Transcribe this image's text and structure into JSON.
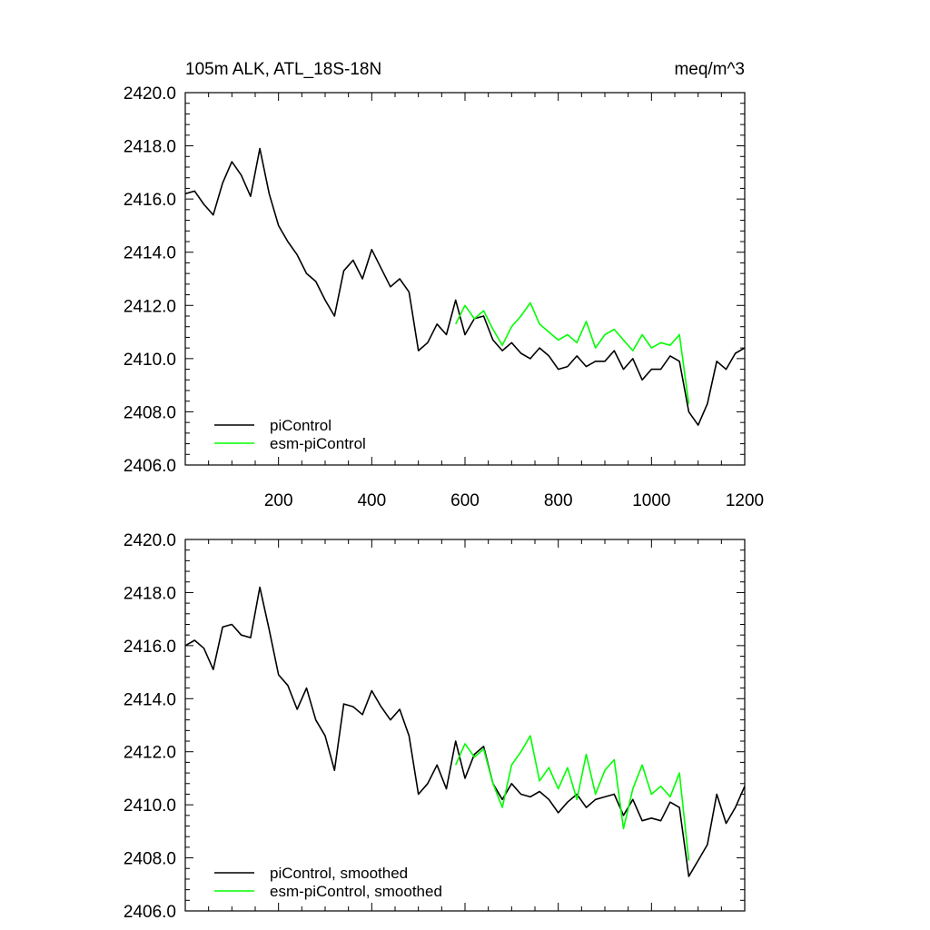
{
  "chart_data": [
    {
      "type": "line",
      "panel": "top",
      "title": "105m ALK, ATL_18S-18N",
      "units_label": "meq/m^3",
      "xlim": [
        0,
        1200
      ],
      "ylim": [
        2406.0,
        2420.0
      ],
      "xticks": [
        200,
        400,
        600,
        800,
        1000,
        1200
      ],
      "xtick_labels": [
        "200",
        "400",
        "600",
        "800",
        "1000",
        "1200"
      ],
      "yticks": [
        2406.0,
        2408.0,
        2410.0,
        2412.0,
        2414.0,
        2416.0,
        2418.0,
        2420.0
      ],
      "ytick_labels": [
        "2406.0",
        "2408.0",
        "2410.0",
        "2412.0",
        "2414.0",
        "2416.0",
        "2418.0",
        "2420.0"
      ],
      "legend_position": "bottom-left",
      "grid": false,
      "series": [
        {
          "name": "piControl",
          "color": "#000000",
          "x": [
            0,
            20,
            40,
            60,
            80,
            100,
            120,
            140,
            160,
            180,
            200,
            220,
            240,
            260,
            280,
            300,
            320,
            340,
            360,
            380,
            400,
            420,
            440,
            460,
            480,
            500,
            520,
            540,
            560,
            580,
            600,
            620,
            640,
            660,
            680,
            700,
            720,
            740,
            760,
            780,
            800,
            820,
            840,
            860,
            880,
            900,
            920,
            940,
            960,
            980,
            1000,
            1020,
            1040,
            1060,
            1080,
            1100,
            1120,
            1140,
            1160,
            1180,
            1200
          ],
          "y": [
            2416.2,
            2416.3,
            2415.8,
            2415.4,
            2416.6,
            2417.4,
            2416.9,
            2416.1,
            2417.9,
            2416.2,
            2415.0,
            2414.4,
            2413.9,
            2413.2,
            2412.9,
            2412.2,
            2411.6,
            2413.3,
            2413.7,
            2413.0,
            2414.1,
            2413.4,
            2412.7,
            2413.0,
            2412.5,
            2410.3,
            2410.6,
            2411.3,
            2410.9,
            2412.2,
            2410.9,
            2411.5,
            2411.6,
            2410.7,
            2410.3,
            2410.6,
            2410.2,
            2410.0,
            2410.4,
            2410.1,
            2409.6,
            2409.7,
            2410.1,
            2409.7,
            2409.9,
            2409.9,
            2410.3,
            2409.6,
            2410.0,
            2409.2,
            2409.6,
            2409.6,
            2410.1,
            2409.9,
            2408.0,
            2407.5,
            2408.3,
            2409.9,
            2409.6,
            2410.2,
            2410.4
          ]
        },
        {
          "name": "esm-piControl",
          "color": "#00ff00",
          "x": [
            580,
            600,
            620,
            640,
            660,
            680,
            700,
            720,
            740,
            760,
            780,
            800,
            820,
            840,
            860,
            880,
            900,
            920,
            940,
            960,
            980,
            1000,
            1020,
            1040,
            1060,
            1080
          ],
          "y": [
            2411.3,
            2412.0,
            2411.5,
            2411.8,
            2411.1,
            2410.5,
            2411.2,
            2411.6,
            2412.1,
            2411.3,
            2411.0,
            2410.7,
            2410.9,
            2410.6,
            2411.4,
            2410.4,
            2410.9,
            2411.1,
            2410.7,
            2410.3,
            2410.9,
            2410.4,
            2410.6,
            2410.5,
            2410.9,
            2408.3
          ]
        }
      ]
    },
    {
      "type": "line",
      "panel": "bottom",
      "title": "",
      "xlim": [
        0,
        1200
      ],
      "ylim": [
        2406.0,
        2420.0
      ],
      "yticks": [
        2406.0,
        2408.0,
        2410.0,
        2412.0,
        2414.0,
        2416.0,
        2418.0,
        2420.0
      ],
      "ytick_labels": [
        "2406.0",
        "2408.0",
        "2410.0",
        "2412.0",
        "2414.0",
        "2416.0",
        "2418.0",
        "2420.0"
      ],
      "legend_position": "bottom-left",
      "grid": false,
      "series": [
        {
          "name": "piControl, smoothed",
          "color": "#000000",
          "x": [
            0,
            20,
            40,
            60,
            80,
            100,
            120,
            140,
            160,
            180,
            200,
            220,
            240,
            260,
            280,
            300,
            320,
            340,
            360,
            380,
            400,
            420,
            440,
            460,
            480,
            500,
            520,
            540,
            560,
            580,
            600,
            620,
            640,
            660,
            680,
            700,
            720,
            740,
            760,
            780,
            800,
            820,
            840,
            860,
            880,
            900,
            920,
            940,
            960,
            980,
            1000,
            1020,
            1040,
            1060,
            1080,
            1100,
            1120,
            1140,
            1160,
            1180,
            1200
          ],
          "y": [
            2416.0,
            2416.2,
            2415.9,
            2415.1,
            2416.7,
            2416.8,
            2416.4,
            2416.3,
            2418.2,
            2416.6,
            2414.9,
            2414.5,
            2413.6,
            2414.4,
            2413.2,
            2412.6,
            2411.3,
            2413.8,
            2413.7,
            2413.4,
            2414.3,
            2413.7,
            2413.2,
            2413.6,
            2412.6,
            2410.4,
            2410.8,
            2411.5,
            2410.6,
            2412.4,
            2411.0,
            2411.9,
            2412.2,
            2410.8,
            2410.2,
            2410.8,
            2410.4,
            2410.3,
            2410.5,
            2410.2,
            2409.7,
            2410.1,
            2410.4,
            2409.9,
            2410.2,
            2410.3,
            2410.4,
            2409.6,
            2410.2,
            2409.4,
            2409.5,
            2409.4,
            2410.1,
            2409.9,
            2407.3,
            2407.9,
            2408.5,
            2410.4,
            2409.3,
            2409.9,
            2410.7
          ]
        },
        {
          "name": "esm-piControl, smoothed",
          "color": "#00ff00",
          "x": [
            580,
            600,
            620,
            640,
            660,
            680,
            700,
            720,
            740,
            760,
            780,
            800,
            820,
            840,
            860,
            880,
            900,
            920,
            940,
            960,
            980,
            1000,
            1020,
            1040,
            1060,
            1080
          ],
          "y": [
            2411.5,
            2412.3,
            2411.8,
            2412.1,
            2410.8,
            2409.9,
            2411.5,
            2412.0,
            2412.6,
            2410.9,
            2411.4,
            2410.6,
            2411.4,
            2410.2,
            2411.9,
            2410.4,
            2411.3,
            2411.7,
            2409.1,
            2410.6,
            2411.5,
            2410.4,
            2410.7,
            2410.3,
            2411.2,
            2407.9
          ]
        }
      ]
    }
  ]
}
